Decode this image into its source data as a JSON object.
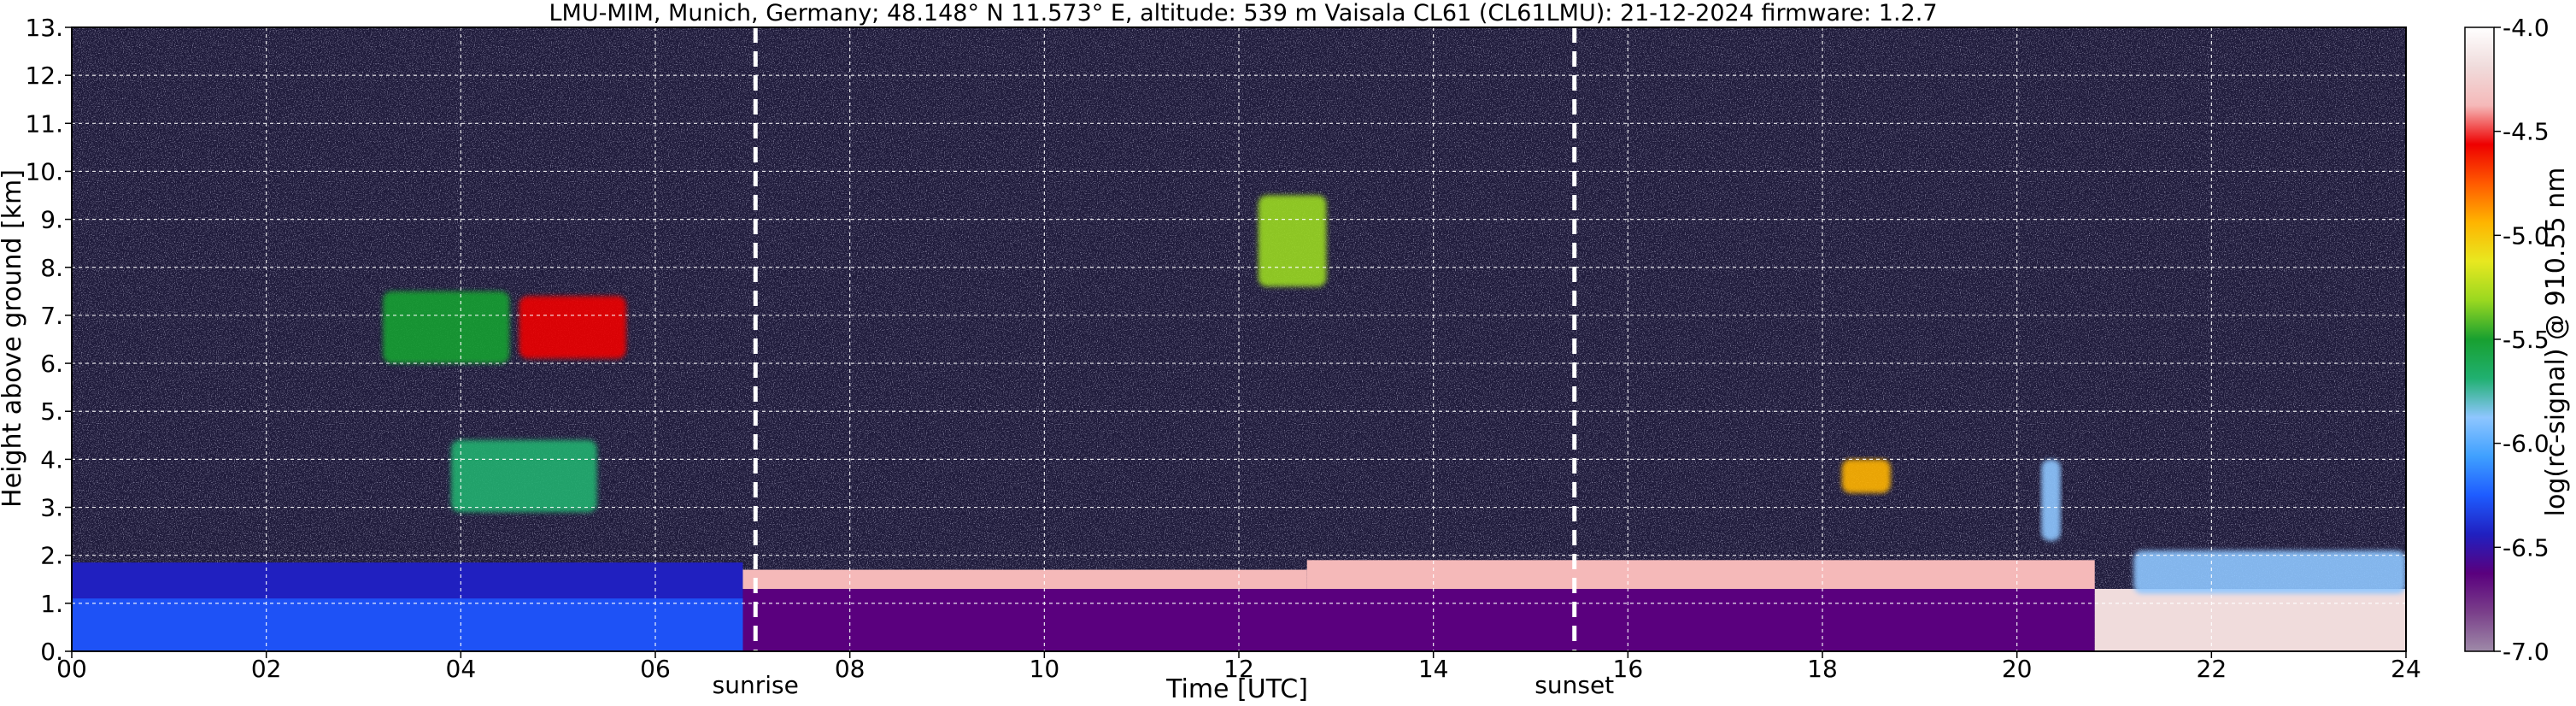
{
  "chart_data": {
    "type": "heatmap",
    "title": "LMU-MIM, Munich, Germany; 48.148° N 11.573° E, altitude: 539 m    Vaisala CL61 (CL61LMU): 21-12-2024    firmware: 1.2.7",
    "xlabel": "Time [UTC]",
    "ylabel": "Height above ground [km]",
    "colorbar_label": "log(rc-signal) @ 910.55 nm",
    "xlim": [
      0,
      24
    ],
    "ylim": [
      0,
      13
    ],
    "x_ticks": [
      0,
      2,
      4,
      6,
      8,
      10,
      12,
      14,
      16,
      18,
      20,
      22,
      24
    ],
    "x_tick_labels": [
      "00",
      "02",
      "04",
      "06",
      "08",
      "10",
      "12",
      "14",
      "16",
      "18",
      "20",
      "22",
      "24"
    ],
    "y_ticks": [
      0,
      1,
      2,
      3,
      4,
      5,
      6,
      7,
      8,
      9,
      10,
      11,
      12,
      13
    ],
    "y_tick_labels": [
      "0.",
      "1.",
      "2.",
      "3.",
      "4.",
      "5.",
      "6.",
      "7.",
      "8.",
      "9.",
      "10.",
      "11.",
      "12.",
      "13."
    ],
    "grid": true,
    "color_range": [
      -7.0,
      -4.0
    ],
    "colorbar_ticks": [
      -7.0,
      -6.5,
      -6.0,
      -5.5,
      -5.0,
      -4.5,
      -4.0
    ],
    "colorbar_tick_labels": [
      "-7.0",
      "-6.5",
      "-6.0",
      "-5.5",
      "-5.0",
      "-4.5",
      "-4.0"
    ],
    "colors": {
      "background": "#1e1a3a",
      "colorbar_stops": [
        "#9e8aa8",
        "#7a3f8a",
        "#5a007e",
        "#2020c0",
        "#1e5cff",
        "#3fa0ff",
        "#8ec6ff",
        "#20b070",
        "#18a030",
        "#9ad820",
        "#e8e820",
        "#ffb400",
        "#ff5a00",
        "#ee0000",
        "#f5b9b9",
        "#f0dcdc",
        "#ffffff"
      ]
    },
    "events": [
      {
        "name": "sunrise",
        "time": 7.03
      },
      {
        "name": "sunset",
        "time": 15.45
      }
    ],
    "features": [
      {
        "kind": "boundary_layer",
        "start": 0,
        "end": 6.9,
        "bottom": 0,
        "top": 1.85,
        "value": -6.4
      },
      {
        "kind": "boundary_layer",
        "start": 6.9,
        "end": 20.8,
        "bottom": 0,
        "top": 1.4,
        "value": -6.7
      },
      {
        "kind": "aerosol_layer",
        "start": 0,
        "end": 6.9,
        "bottom": 0,
        "top": 1.1,
        "value": -6.2
      },
      {
        "kind": "cloud_layer",
        "start": 6.9,
        "end": 12.7,
        "bottom": 1.3,
        "top": 1.7,
        "value": -4.3
      },
      {
        "kind": "cloud_layer",
        "start": 12.7,
        "end": 20.8,
        "bottom": 1.3,
        "top": 1.9,
        "value": -4.4
      },
      {
        "kind": "precip_base",
        "start": 20.8,
        "end": 24,
        "bottom": 0,
        "top": 1.3,
        "value": -4.2
      },
      {
        "kind": "cloud_patch",
        "start": 3.2,
        "end": 4.5,
        "bottom": 6.0,
        "top": 7.5,
        "value": -5.5
      },
      {
        "kind": "cloud_patch",
        "start": 4.6,
        "end": 5.7,
        "bottom": 6.1,
        "top": 7.4,
        "value": -4.6
      },
      {
        "kind": "cloud_patch",
        "start": 3.9,
        "end": 5.4,
        "bottom": 2.9,
        "top": 4.4,
        "value": -5.7
      },
      {
        "kind": "cloud_patch",
        "start": 12.2,
        "end": 12.9,
        "bottom": 7.6,
        "top": 9.5,
        "value": -5.4
      },
      {
        "kind": "cloud_patch",
        "start": 18.2,
        "end": 18.7,
        "bottom": 3.3,
        "top": 4.0,
        "value": -5.0
      },
      {
        "kind": "cloud_patch",
        "start": 20.25,
        "end": 20.45,
        "bottom": 2.3,
        "top": 4.0,
        "value": -5.8
      },
      {
        "kind": "cloud_patch",
        "start": 21.2,
        "end": 24,
        "bottom": 1.2,
        "top": 2.1,
        "value": -5.9
      }
    ]
  }
}
